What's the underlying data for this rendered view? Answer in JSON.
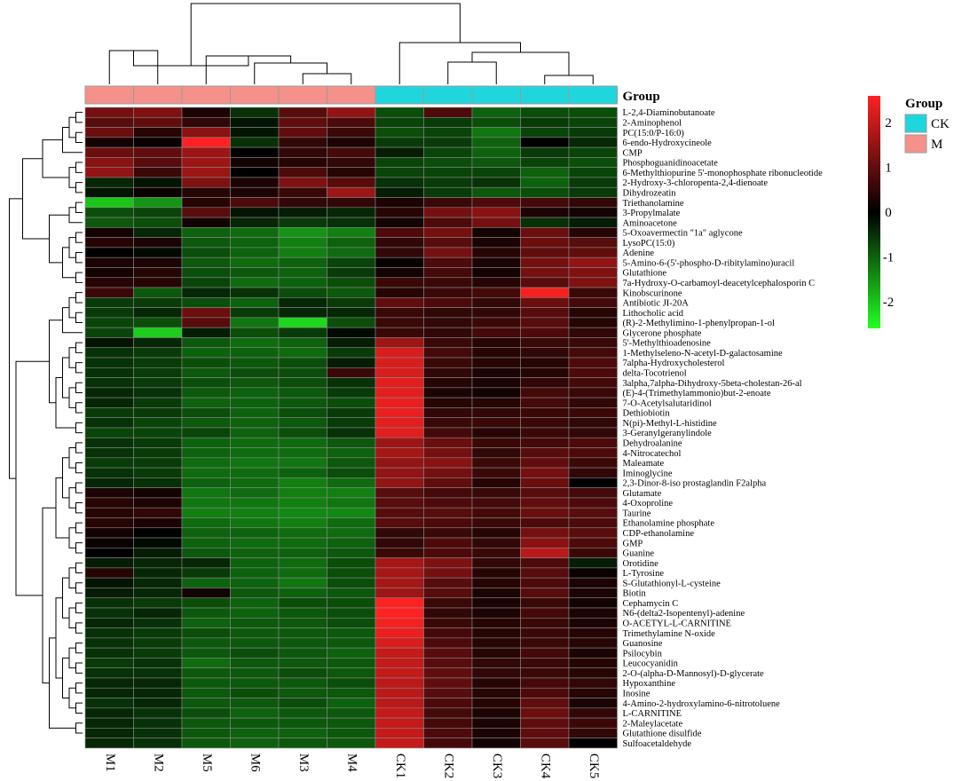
{
  "chart_data": {
    "type": "heatmap",
    "title": "",
    "columns": [
      "M1",
      "M2",
      "M5",
      "M6",
      "M3",
      "M4",
      "CK1",
      "CK2",
      "CK3",
      "CK4",
      "CK5"
    ],
    "column_groups": [
      "M",
      "M",
      "M",
      "M",
      "M",
      "M",
      "CK",
      "CK",
      "CK",
      "CK",
      "CK"
    ],
    "group_annotation_title": "Group",
    "group_legend": {
      "title": "Group",
      "items": [
        {
          "name": "CK",
          "color": "#1fd6dd"
        },
        {
          "name": "M",
          "color": "#f5918a"
        }
      ]
    },
    "color_scale": {
      "min": -2.6,
      "max": 2.6,
      "low_color": "#22ff22",
      "mid_color": "#000000",
      "high_color": "#ff2222",
      "ticks": [
        {
          "value": 2,
          "label": "2"
        },
        {
          "value": 1,
          "label": "1"
        },
        {
          "value": 0,
          "label": "0"
        },
        {
          "value": -1,
          "label": "-1"
        },
        {
          "value": -2,
          "label": "-2"
        }
      ]
    },
    "rows": [
      {
        "name": "L-2,4-Diaminobutanoate",
        "values": [
          1.2,
          1.3,
          0.3,
          -0.5,
          0.9,
          1.5,
          -0.8,
          0.8,
          -1.0,
          -0.8,
          -0.8
        ]
      },
      {
        "name": "2-Aminophenol",
        "values": [
          0.9,
          1.0,
          0.5,
          -0.2,
          1.0,
          0.8,
          -0.7,
          -0.6,
          -0.8,
          -0.6,
          -0.7
        ]
      },
      {
        "name": "PC(15:0/P-16:0)",
        "values": [
          1.1,
          0.4,
          1.4,
          -0.2,
          1.0,
          0.6,
          -0.8,
          -0.7,
          -1.2,
          -0.7,
          -0.6
        ]
      },
      {
        "name": "6-endo-Hydroxycineole",
        "values": [
          0.2,
          0.1,
          2.7,
          -0.5,
          0.5,
          0.3,
          -0.6,
          -0.6,
          -1.0,
          0.0,
          -0.4
        ]
      },
      {
        "name": "CMP",
        "values": [
          1.1,
          1.0,
          1.6,
          0.0,
          0.5,
          0.7,
          -0.3,
          -0.7,
          -1.0,
          -0.6,
          -0.7
        ]
      },
      {
        "name": "Phosphoguanidinoacetate",
        "values": [
          1.4,
          0.9,
          1.6,
          0.2,
          0.4,
          0.5,
          -0.7,
          -0.8,
          -0.9,
          -0.7,
          -0.8
        ]
      },
      {
        "name": "6-Methylthiopurine 5'-monophosphate ribonucleotide",
        "values": [
          1.5,
          0.6,
          1.6,
          0.0,
          0.8,
          0.4,
          -0.7,
          -0.7,
          -0.7,
          -1.0,
          -0.7
        ]
      },
      {
        "name": "2-Hydroxy-3-chloropenta-2,4-dienoate",
        "values": [
          -0.4,
          -0.2,
          1.3,
          0.3,
          1.3,
          0.9,
          -0.5,
          -0.6,
          -0.5,
          -1.0,
          -0.6
        ]
      },
      {
        "name": "Dihydrozeatin",
        "values": [
          -0.2,
          0.1,
          0.4,
          0.3,
          0.6,
          1.6,
          -0.3,
          -0.6,
          -0.9,
          -0.8,
          -0.6
        ]
      },
      {
        "name": "Triethanolamine",
        "values": [
          -2.0,
          -1.5,
          0.4,
          0.8,
          0.5,
          0.5,
          0.3,
          0.6,
          0.8,
          0.7,
          0.5
        ]
      },
      {
        "name": "3-Propylmalate",
        "values": [
          -0.8,
          -0.7,
          0.9,
          -0.2,
          -0.3,
          -0.4,
          0.4,
          1.2,
          1.4,
          0.3,
          0.2
        ]
      },
      {
        "name": "Aminoacetone",
        "values": [
          -0.9,
          -0.8,
          0.2,
          -0.4,
          -0.6,
          -0.5,
          0.2,
          0.8,
          1.2,
          -0.5,
          -0.3
        ]
      },
      {
        "name": "5-Oxoavermectin \"1a\" aglycone",
        "values": [
          0.2,
          -0.4,
          -1.0,
          -1.1,
          -1.5,
          -1.3,
          0.8,
          1.2,
          0.2,
          1.1,
          0.4
        ]
      },
      {
        "name": "LysoPC(15:0)",
        "values": [
          0.4,
          0.3,
          -0.9,
          -1.0,
          -1.3,
          -1.0,
          0.5,
          0.9,
          0.3,
          1.1,
          0.9
        ]
      },
      {
        "name": "Adenine",
        "values": [
          0.0,
          -0.1,
          -0.8,
          -1.0,
          -1.3,
          -1.1,
          0.5,
          1.2,
          0.4,
          1.0,
          1.0
        ]
      },
      {
        "name": "5-Amino-6-(5'-phospho-D-ribitylamino)uracil",
        "values": [
          0.3,
          0.3,
          -0.9,
          -1.1,
          -1.0,
          -0.7,
          0.1,
          0.8,
          0.3,
          1.2,
          1.5
        ]
      },
      {
        "name": "Glutathione",
        "values": [
          0.2,
          0.4,
          -0.8,
          -0.9,
          -1.0,
          -0.6,
          0.2,
          0.7,
          0.2,
          1.2,
          1.3
        ]
      },
      {
        "name": "7a-Hydroxy-O-carbamoyl-deacetylcephalosporin C",
        "values": [
          0.4,
          0.4,
          -0.7,
          -1.1,
          -1.0,
          -0.8,
          0.6,
          0.6,
          0.4,
          0.9,
          1.3
        ]
      },
      {
        "name": "Kinobscurinone",
        "values": [
          0.6,
          -0.9,
          -0.4,
          -0.5,
          -0.8,
          -0.9,
          0.4,
          0.6,
          0.7,
          2.5,
          0.6
        ]
      },
      {
        "name": "Antibiotic JI-20A",
        "values": [
          -0.6,
          -0.6,
          -0.8,
          -1.0,
          -0.4,
          -0.6,
          1.0,
          0.8,
          0.5,
          1.1,
          0.7
        ]
      },
      {
        "name": "Lithocholic acid",
        "values": [
          -0.6,
          -0.4,
          1.1,
          -0.6,
          -0.4,
          -0.4,
          0.6,
          0.5,
          0.5,
          0.9,
          0.4
        ]
      },
      {
        "name": "(R)-2-Methylimino-1-phenylpropan-1-ol",
        "values": [
          -0.7,
          -0.8,
          0.9,
          -1.2,
          -2.2,
          -0.8,
          0.6,
          0.5,
          0.6,
          0.9,
          0.4
        ]
      },
      {
        "name": "Glycerone phosphate",
        "values": [
          -0.7,
          -2.1,
          -0.3,
          -0.8,
          -0.6,
          -0.1,
          0.6,
          0.5,
          0.7,
          0.8,
          0.5
        ]
      },
      {
        "name": "5'-Methylthioadenosine",
        "values": [
          -0.2,
          -0.4,
          -0.9,
          -1.1,
          -1.0,
          -0.3,
          1.6,
          0.6,
          0.4,
          0.6,
          0.6
        ]
      },
      {
        "name": "1-Methylseleno-N-acetyl-D-galactosamine",
        "values": [
          -0.5,
          -0.6,
          -1.0,
          -1.0,
          -1.1,
          -0.6,
          2.2,
          0.7,
          0.4,
          0.5,
          0.7
        ]
      },
      {
        "name": "7alpha-Hydroxycholesterol",
        "values": [
          -0.5,
          -0.6,
          -0.8,
          -0.9,
          -0.8,
          -0.3,
          2.2,
          0.6,
          0.4,
          0.4,
          0.8
        ]
      },
      {
        "name": "delta-Tocotrienol",
        "values": [
          -0.5,
          -0.6,
          -0.9,
          -0.8,
          -0.8,
          0.6,
          2.2,
          0.5,
          0.3,
          0.4,
          0.8
        ]
      },
      {
        "name": "3alpha,7alpha-Dihydroxy-5beta-cholestan-26-al",
        "values": [
          -0.5,
          -0.6,
          -0.8,
          -0.9,
          -0.8,
          -0.5,
          2.3,
          0.4,
          0.3,
          0.5,
          0.7
        ]
      },
      {
        "name": "(E)-4-(Trimethylammonio)but-2-enoate",
        "values": [
          -0.4,
          -0.5,
          -0.9,
          -1.0,
          -0.9,
          -0.6,
          2.3,
          0.3,
          0.2,
          0.7,
          0.6
        ]
      },
      {
        "name": "7-O-Acetylsalutaridinol",
        "values": [
          -0.4,
          -0.6,
          -1.0,
          -1.0,
          -0.9,
          -0.8,
          2.4,
          0.4,
          0.4,
          0.7,
          0.5
        ]
      },
      {
        "name": "Dethiobiotin",
        "values": [
          -0.6,
          -0.6,
          -0.8,
          -1.0,
          -0.8,
          -0.6,
          2.4,
          0.5,
          0.5,
          0.6,
          0.6
        ]
      },
      {
        "name": "N(pi)-Methyl-L-histidine",
        "values": [
          -0.5,
          -0.7,
          -0.9,
          -1.0,
          -0.9,
          -0.6,
          2.3,
          0.6,
          0.6,
          0.6,
          0.5
        ]
      },
      {
        "name": "3-Geranylgeranylindole",
        "values": [
          -0.7,
          -0.7,
          -0.7,
          -1.0,
          -0.8,
          -0.5,
          2.3,
          0.7,
          0.4,
          0.6,
          0.5
        ]
      },
      {
        "name": "Dehydroalanine",
        "values": [
          -0.5,
          -0.6,
          -1.0,
          -1.1,
          -1.1,
          -0.9,
          1.6,
          1.1,
          0.6,
          0.7,
          0.8
        ]
      },
      {
        "name": "4-Nitrocatechol",
        "values": [
          -0.5,
          -0.6,
          -1.0,
          -1.1,
          -1.1,
          -1.0,
          1.7,
          1.2,
          0.5,
          0.9,
          0.8
        ]
      },
      {
        "name": "Maleamate",
        "values": [
          -0.6,
          -0.6,
          -1.1,
          -1.2,
          -1.2,
          -0.9,
          1.5,
          1.4,
          0.6,
          1.0,
          0.6
        ]
      },
      {
        "name": "Iminoglycine",
        "values": [
          -0.5,
          -0.6,
          -1.1,
          -1.1,
          -1.0,
          -0.8,
          1.5,
          1.2,
          0.6,
          1.2,
          0.5
        ]
      },
      {
        "name": "2,3-Dinor-8-iso prostaglandin F2alpha",
        "values": [
          -0.4,
          -0.5,
          -1.0,
          -1.1,
          -1.3,
          -1.1,
          1.5,
          1.0,
          0.4,
          1.1,
          0.0
        ]
      },
      {
        "name": "Glutamate",
        "values": [
          0.3,
          0.2,
          -1.2,
          -1.1,
          -1.3,
          -1.3,
          0.9,
          0.7,
          0.6,
          0.9,
          0.7
        ]
      },
      {
        "name": "4-Oxoproline",
        "values": [
          0.4,
          0.3,
          -1.2,
          -1.2,
          -1.3,
          -1.2,
          0.9,
          0.8,
          0.7,
          1.0,
          0.8
        ]
      },
      {
        "name": "Taurine",
        "values": [
          0.4,
          0.5,
          -1.3,
          -1.3,
          -1.4,
          -1.4,
          0.9,
          0.9,
          0.7,
          1.1,
          0.9
        ]
      },
      {
        "name": "Ethanolamine phosphate",
        "values": [
          0.4,
          0.3,
          -1.1,
          -1.2,
          -1.3,
          -1.1,
          0.9,
          0.8,
          0.6,
          0.8,
          0.8
        ]
      },
      {
        "name": "CDP-ethanolamine",
        "values": [
          0.2,
          0.0,
          -1.0,
          -1.0,
          -1.1,
          -1.1,
          0.5,
          0.6,
          0.4,
          1.2,
          0.9
        ]
      },
      {
        "name": "GMP",
        "values": [
          0.1,
          -0.1,
          -1.0,
          -1.1,
          -1.1,
          -1.0,
          0.5,
          0.8,
          0.5,
          1.4,
          0.8
        ]
      },
      {
        "name": "Guanine",
        "values": [
          0.0,
          -0.3,
          -0.9,
          -1.0,
          -1.0,
          -0.9,
          0.6,
          0.8,
          0.6,
          1.9,
          0.6
        ]
      },
      {
        "name": "Orotidine",
        "values": [
          -0.3,
          -0.4,
          -0.4,
          -1.0,
          -1.1,
          -0.8,
          1.7,
          1.3,
          0.5,
          0.8,
          -0.3
        ]
      },
      {
        "name": "L-Tyrosine",
        "values": [
          0.4,
          -0.4,
          -0.6,
          -1.0,
          -1.1,
          -0.8,
          1.7,
          1.2,
          0.4,
          0.9,
          0.1
        ]
      },
      {
        "name": "S-Glutathionyl-L-cysteine",
        "values": [
          -0.2,
          -0.4,
          -1.0,
          -1.0,
          -1.2,
          -0.8,
          1.7,
          0.9,
          0.4,
          0.8,
          0.3
        ]
      },
      {
        "name": "Biotin",
        "values": [
          -0.3,
          -0.4,
          0.2,
          -0.9,
          -1.0,
          -0.9,
          1.6,
          0.9,
          0.3,
          0.9,
          0.3
        ]
      },
      {
        "name": "Cephamycin C",
        "values": [
          -0.5,
          -0.6,
          -0.8,
          -1.0,
          -0.8,
          -0.8,
          2.6,
          0.6,
          0.3,
          0.6,
          0.2
        ]
      },
      {
        "name": "N6-(delta2-Isopentenyl)-adenine",
        "values": [
          -0.5,
          -0.4,
          -0.9,
          -1.0,
          -0.9,
          -0.8,
          2.6,
          0.5,
          0.3,
          0.7,
          0.3
        ]
      },
      {
        "name": "O-ACETYL-L-CARNITINE",
        "values": [
          -0.4,
          -0.5,
          -1.0,
          -0.9,
          -0.9,
          -0.8,
          2.5,
          0.6,
          0.4,
          0.6,
          0.3
        ]
      },
      {
        "name": "Trimethylamine N-oxide",
        "values": [
          -0.5,
          -0.6,
          -0.8,
          -0.9,
          -0.9,
          -0.9,
          2.4,
          0.7,
          0.4,
          0.6,
          0.4
        ]
      },
      {
        "name": "Guanosine",
        "values": [
          -0.5,
          -0.6,
          -0.9,
          -0.9,
          -0.9,
          -0.9,
          2.2,
          0.8,
          0.4,
          0.6,
          0.4
        ]
      },
      {
        "name": "Psilocybin",
        "values": [
          -0.5,
          -0.6,
          -0.9,
          -0.8,
          -0.9,
          -1.0,
          2.0,
          0.9,
          0.4,
          0.7,
          0.3
        ]
      },
      {
        "name": "Leucocyanidin",
        "values": [
          -0.6,
          -0.5,
          -1.1,
          -0.9,
          -0.9,
          -0.9,
          2.0,
          0.9,
          0.5,
          0.6,
          0.4
        ]
      },
      {
        "name": "2-O-(alpha-D-Mannosyl)-D-glycerate",
        "values": [
          -0.5,
          -0.5,
          -0.9,
          -0.9,
          -0.8,
          -0.9,
          2.0,
          1.0,
          0.5,
          0.6,
          0.4
        ]
      },
      {
        "name": "Hypoxanthine",
        "values": [
          -0.4,
          -0.4,
          -0.9,
          -0.9,
          -0.9,
          -0.8,
          1.9,
          1.0,
          0.4,
          0.7,
          0.5
        ]
      },
      {
        "name": "Inosine",
        "values": [
          -0.4,
          -0.4,
          -0.9,
          -0.8,
          -0.9,
          -0.9,
          1.9,
          0.9,
          0.4,
          0.8,
          0.4
        ]
      },
      {
        "name": "4-Amino-2-hydroxylamino-6-nitrotoluene",
        "values": [
          -0.5,
          -0.4,
          -0.9,
          -0.9,
          -0.8,
          -1.0,
          1.9,
          0.8,
          0.4,
          1.0,
          0.3
        ]
      },
      {
        "name": "L-CARNITINE",
        "values": [
          -0.4,
          -0.5,
          -0.8,
          -1.0,
          -0.9,
          -0.9,
          2.0,
          0.7,
          0.3,
          1.1,
          0.5
        ]
      },
      {
        "name": "2-Maleylacetate",
        "values": [
          -0.4,
          -0.5,
          -0.9,
          -0.9,
          -0.9,
          -0.9,
          2.0,
          0.7,
          0.3,
          1.0,
          0.6
        ]
      },
      {
        "name": "Glutathione disulfide",
        "values": [
          -0.4,
          -0.5,
          -0.9,
          -1.0,
          -1.0,
          -0.9,
          2.0,
          0.8,
          0.3,
          1.0,
          0.5
        ]
      },
      {
        "name": "Sulfoacetaldehyde",
        "values": [
          -0.4,
          -0.5,
          -0.9,
          -1.0,
          -0.9,
          -0.9,
          2.0,
          0.7,
          0.2,
          0.9,
          0.0
        ]
      }
    ]
  }
}
